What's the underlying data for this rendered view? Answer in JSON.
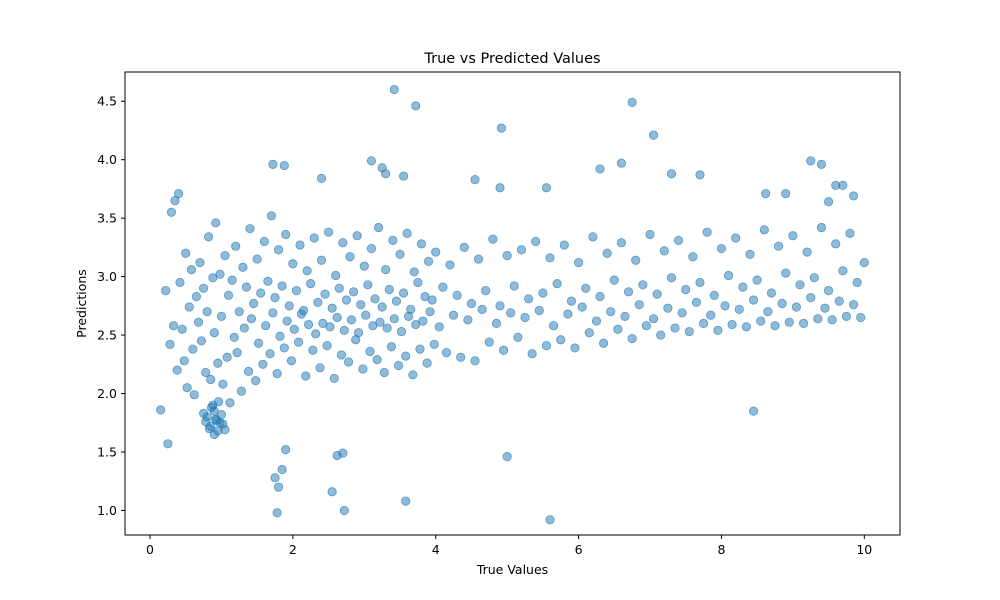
{
  "chart_data": {
    "type": "scatter",
    "title": "True vs Predicted Values",
    "xlabel": "True Values",
    "ylabel": "Predictions",
    "xlim": [
      -0.35,
      10.5
    ],
    "ylim": [
      0.79,
      4.75
    ],
    "xticks": [
      0,
      2,
      4,
      6,
      8,
      10
    ],
    "xtick_labels": [
      "0",
      "2",
      "4",
      "6",
      "8",
      "10"
    ],
    "yticks": [
      1.0,
      1.5,
      2.0,
      2.5,
      3.0,
      3.5,
      4.0,
      4.5
    ],
    "ytick_labels": [
      "1.0",
      "1.5",
      "2.0",
      "2.5",
      "3.0",
      "3.5",
      "4.0",
      "4.5"
    ],
    "grid": false,
    "legend": null,
    "marker_color": "#1f77b4",
    "marker_opacity": 0.5,
    "series": [
      {
        "x": [
          0.15,
          0.22,
          0.25,
          0.28,
          0.3,
          0.33,
          0.35,
          0.38,
          0.4,
          0.42,
          0.45,
          0.48,
          0.5,
          0.52,
          0.55,
          0.58,
          0.6,
          0.62,
          0.65,
          0.68,
          0.7,
          0.72,
          0.75,
          0.78,
          0.8,
          0.82,
          0.85,
          0.88,
          0.9,
          0.92,
          0.95,
          0.98,
          1.0,
          1.02,
          1.05,
          1.08,
          1.1,
          1.12,
          1.15,
          1.18,
          1.2,
          1.22,
          1.25,
          1.28,
          1.3,
          1.32,
          1.35,
          1.38,
          1.4,
          1.42,
          1.45,
          1.48,
          1.5,
          1.52,
          1.55,
          1.58,
          1.6,
          1.62,
          1.65,
          1.68,
          1.7,
          1.72,
          1.75,
          1.78,
          1.8,
          1.82,
          1.85,
          1.88,
          1.9,
          1.92,
          1.95,
          1.98,
          2.0,
          2.02,
          2.05,
          2.08,
          2.1,
          2.12,
          2.15,
          2.18,
          2.2,
          2.22,
          2.25,
          2.28,
          2.3,
          2.32,
          2.35,
          2.38,
          2.4,
          2.42,
          2.45,
          2.48,
          2.5,
          2.52,
          2.55,
          2.58,
          2.6,
          2.62,
          2.65,
          2.68,
          2.7,
          2.72,
          2.75,
          2.78,
          2.8,
          2.82,
          2.85,
          2.88,
          2.9,
          2.92,
          2.95,
          2.98,
          3.0,
          3.02,
          3.05,
          3.08,
          3.1,
          3.12,
          3.15,
          3.18,
          3.2,
          3.22,
          3.25,
          3.28,
          3.3,
          3.32,
          3.35,
          3.38,
          3.4,
          3.42,
          3.45,
          3.48,
          3.5,
          3.52,
          3.55,
          3.58,
          3.6,
          3.62,
          3.65,
          3.68,
          3.7,
          3.72,
          3.75,
          3.78,
          3.8,
          3.82,
          3.85,
          3.88,
          3.9,
          3.92,
          3.95,
          3.98,
          4.0,
          4.05,
          4.1,
          4.15,
          4.2,
          4.25,
          4.3,
          4.35,
          4.4,
          4.45,
          4.5,
          4.55,
          4.6,
          4.65,
          4.7,
          4.75,
          4.8,
          4.85,
          4.9,
          4.95,
          5.0,
          5.05,
          5.1,
          5.15,
          5.2,
          5.25,
          5.3,
          5.35,
          5.4,
          5.45,
          5.5,
          5.55,
          5.6,
          5.65,
          5.7,
          5.75,
          5.8,
          5.85,
          5.9,
          5.95,
          6.0,
          6.05,
          6.1,
          6.15,
          6.2,
          6.25,
          6.3,
          6.35,
          6.4,
          6.45,
          6.5,
          6.55,
          6.6,
          6.65,
          6.7,
          6.75,
          6.8,
          6.85,
          6.9,
          6.95,
          7.0,
          7.05,
          7.1,
          7.15,
          7.2,
          7.25,
          7.3,
          7.35,
          7.4,
          7.45,
          7.5,
          7.55,
          7.6,
          7.65,
          7.7,
          7.75,
          7.8,
          7.85,
          7.9,
          7.95,
          8.0,
          8.05,
          8.1,
          8.15,
          8.2,
          8.25,
          8.3,
          8.35,
          8.4,
          8.45,
          8.5,
          8.55,
          8.6,
          8.65,
          8.7,
          8.75,
          8.8,
          8.85,
          8.9,
          8.95,
          9.0,
          9.05,
          9.1,
          9.15,
          9.2,
          9.25,
          9.3,
          9.35,
          9.4,
          9.45,
          9.5,
          9.55,
          9.6,
          9.65,
          9.7,
          9.75,
          9.8,
          9.85,
          9.9,
          9.95,
          10.0,
          0.9,
          0.92,
          0.85,
          0.88,
          0.95,
          0.98,
          1.0,
          0.8,
          0.83,
          0.86,
          0.9,
          0.93,
          0.96,
          1.02,
          1.05,
          0.75,
          0.78,
          1.75,
          1.8,
          1.85,
          1.9,
          2.55,
          2.72,
          3.42,
          3.72,
          5.6,
          6.75,
          7.05,
          4.92,
          3.58,
          1.78,
          1.88,
          1.72,
          2.62,
          2.4,
          2.7,
          3.1,
          3.25,
          3.3,
          3.55,
          4.55,
          4.9,
          5.0,
          5.55,
          6.3,
          6.6,
          7.3,
          7.7,
          8.45,
          8.62,
          8.9,
          9.4,
          9.6,
          9.85,
          9.7,
          9.5,
          9.25
        ],
        "y": [
          1.86,
          2.88,
          1.57,
          2.42,
          3.55,
          2.58,
          3.65,
          2.2,
          3.71,
          2.95,
          2.55,
          2.28,
          3.2,
          2.05,
          2.74,
          3.06,
          2.38,
          1.99,
          2.83,
          2.61,
          3.12,
          2.45,
          2.9,
          2.18,
          2.7,
          3.34,
          2.12,
          2.99,
          2.52,
          3.46,
          2.26,
          3.02,
          2.66,
          2.08,
          3.18,
          2.31,
          2.84,
          1.92,
          2.97,
          2.48,
          3.26,
          2.35,
          2.7,
          2.02,
          3.08,
          2.56,
          2.91,
          2.19,
          3.41,
          2.64,
          2.77,
          2.11,
          3.15,
          2.43,
          2.86,
          2.25,
          3.3,
          2.58,
          2.96,
          2.34,
          3.52,
          2.69,
          2.82,
          2.17,
          3.23,
          2.49,
          2.92,
          2.39,
          3.36,
          2.62,
          2.75,
          2.28,
          3.11,
          2.55,
          2.88,
          2.44,
          3.27,
          2.68,
          2.71,
          2.15,
          3.05,
          2.59,
          2.94,
          2.37,
          3.33,
          2.51,
          2.78,
          2.22,
          3.14,
          2.6,
          2.85,
          2.41,
          3.38,
          2.57,
          2.73,
          2.13,
          3.01,
          2.65,
          2.9,
          2.33,
          3.29,
          2.54,
          2.8,
          2.27,
          3.17,
          2.63,
          2.87,
          2.46,
          3.35,
          2.52,
          2.76,
          2.21,
          3.09,
          2.67,
          2.93,
          2.36,
          3.24,
          2.58,
          2.81,
          2.29,
          3.42,
          2.61,
          2.74,
          2.18,
          3.06,
          2.56,
          2.89,
          2.4,
          3.31,
          2.64,
          2.79,
          2.24,
          3.19,
          2.53,
          2.86,
          2.32,
          3.37,
          2.66,
          2.72,
          2.16,
          3.04,
          2.59,
          2.95,
          2.38,
          3.28,
          2.62,
          2.83,
          2.26,
          3.13,
          2.7,
          2.8,
          2.42,
          3.21,
          2.57,
          2.91,
          2.35,
          3.1,
          2.67,
          2.84,
          2.31,
          3.25,
          2.63,
          2.77,
          2.28,
          3.15,
          2.72,
          2.88,
          2.44,
          3.32,
          2.6,
          2.75,
          2.37,
          3.18,
          2.69,
          2.92,
          2.48,
          3.23,
          2.65,
          2.81,
          2.34,
          3.3,
          2.71,
          2.86,
          2.41,
          3.16,
          2.58,
          2.94,
          2.46,
          3.27,
          2.68,
          2.79,
          2.39,
          3.12,
          2.74,
          2.9,
          2.52,
          3.34,
          2.62,
          2.83,
          2.43,
          3.2,
          2.7,
          2.97,
          2.55,
          3.29,
          2.66,
          2.87,
          2.47,
          3.14,
          2.76,
          2.93,
          2.58,
          3.36,
          2.64,
          2.85,
          2.5,
          3.22,
          2.73,
          2.99,
          2.56,
          3.31,
          2.69,
          2.89,
          2.53,
          3.17,
          2.78,
          2.95,
          2.6,
          3.38,
          2.67,
          2.84,
          2.54,
          3.24,
          2.75,
          3.01,
          2.59,
          3.33,
          2.72,
          2.91,
          2.57,
          3.19,
          2.8,
          2.97,
          2.62,
          3.4,
          2.7,
          2.86,
          2.58,
          3.26,
          2.77,
          3.03,
          2.61,
          3.35,
          2.74,
          2.93,
          2.6,
          3.21,
          2.82,
          2.99,
          2.64,
          3.42,
          2.73,
          2.88,
          2.63,
          3.28,
          2.79,
          3.05,
          2.66,
          3.37,
          2.76,
          2.95,
          2.65,
          3.12,
          1.85,
          1.78,
          1.72,
          1.9,
          1.68,
          1.75,
          1.82,
          1.8,
          1.7,
          1.88,
          1.65,
          1.77,
          1.93,
          1.74,
          1.69,
          1.83,
          1.76,
          1.28,
          1.2,
          1.35,
          1.52,
          1.16,
          1.0,
          4.6,
          4.46,
          0.92,
          4.49,
          4.21,
          4.27,
          1.08,
          0.98,
          3.95,
          3.96,
          1.47,
          3.84,
          1.49,
          3.99,
          3.93,
          3.88,
          3.86,
          3.83,
          3.76,
          1.46,
          3.76,
          3.92,
          3.97,
          3.88,
          3.87,
          1.85,
          3.71,
          3.71,
          3.96,
          3.78,
          3.69,
          3.78,
          3.64,
          3.99
        ]
      }
    ]
  }
}
